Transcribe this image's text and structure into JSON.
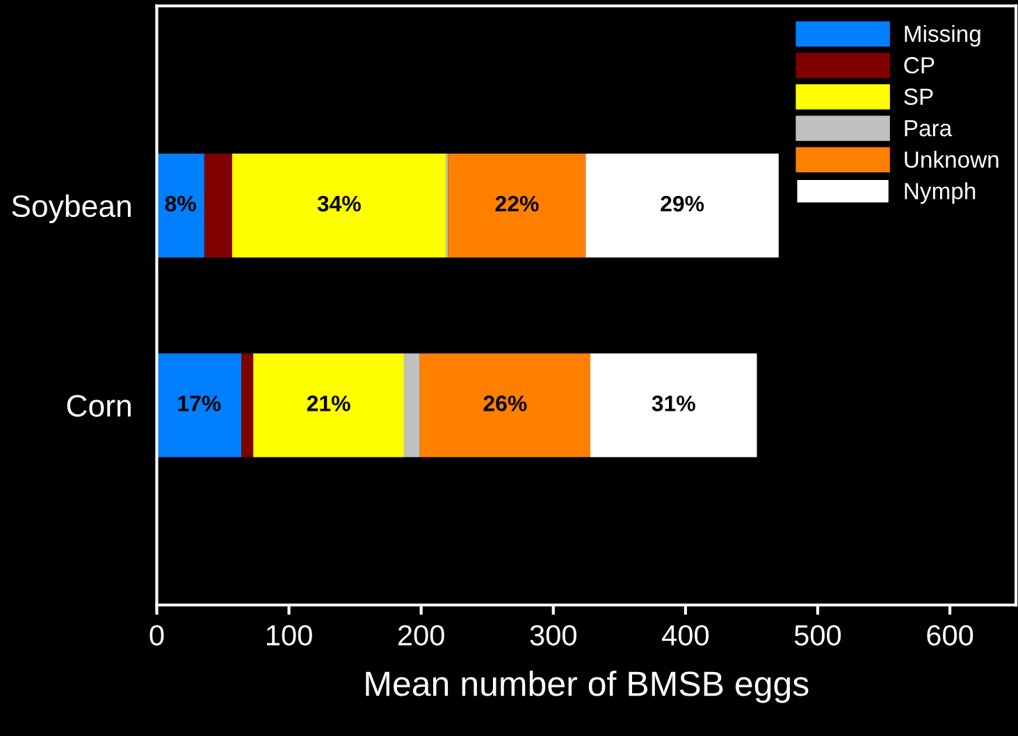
{
  "chart_data": {
    "type": "bar",
    "orientation": "horizontal",
    "stacked": true,
    "xlabel": "Mean number of BMSB eggs",
    "categories": [
      "Soybean",
      "Corn"
    ],
    "series": [
      {
        "name": "Missing",
        "color": "#0080ff",
        "values": [
          36,
          64
        ]
      },
      {
        "name": "CP",
        "color": "#800000",
        "values": [
          21,
          9
        ]
      },
      {
        "name": "SP",
        "color": "#ffff00",
        "values": [
          162,
          114
        ]
      },
      {
        "name": "Para",
        "color": "#c0c0c0",
        "values": [
          1.5,
          12
        ]
      },
      {
        "name": "Unknown",
        "color": "#ff8000",
        "values": [
          104,
          129
        ]
      },
      {
        "name": "Nymph",
        "color": "#ffffff",
        "values": [
          146,
          126
        ]
      }
    ],
    "annotations": [
      "8%",
      "34%",
      "22%",
      "29%",
      "17%",
      "21%",
      "26%",
      "31%"
    ],
    "xlim": [
      0,
      650
    ],
    "xticks": [
      0,
      100,
      200,
      300,
      400,
      500,
      600
    ],
    "grid": false,
    "legend": "top right"
  }
}
